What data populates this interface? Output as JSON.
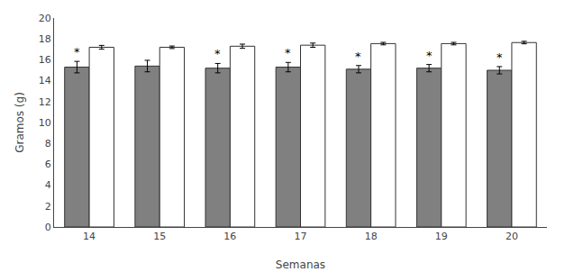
{
  "chart_data": {
    "type": "bar",
    "xlabel": "Semanas",
    "ylabel": "Gramos (g)",
    "categories": [
      "14",
      "15",
      "16",
      "17",
      "18",
      "19",
      "20"
    ],
    "series": [
      {
        "color": "#808080",
        "values": [
          15.3,
          15.4,
          15.2,
          15.3,
          15.1,
          15.2,
          15.0
        ],
        "errors": [
          0.55,
          0.55,
          0.45,
          0.45,
          0.35,
          0.35,
          0.35
        ],
        "annotations": [
          "*",
          null,
          "*",
          "*",
          "*",
          "*",
          "*"
        ]
      },
      {
        "color": "#ffffff",
        "values": [
          17.2,
          17.2,
          17.3,
          17.4,
          17.55,
          17.55,
          17.65
        ],
        "errors": [
          0.18,
          0.12,
          0.2,
          0.2,
          0.12,
          0.12,
          0.12
        ]
      }
    ],
    "ylim": [
      0,
      20
    ],
    "yticks": [
      0,
      2,
      4,
      6,
      8,
      10,
      12,
      14,
      16,
      18,
      20
    ],
    "grid": false
  }
}
